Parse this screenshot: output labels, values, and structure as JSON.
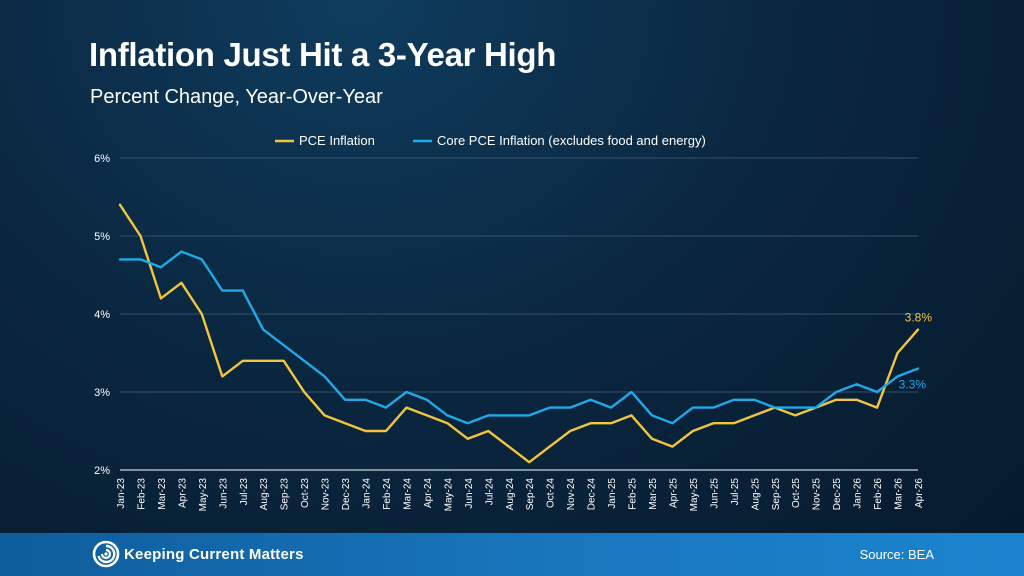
{
  "title": "Inflation Just Hit a 3-Year High",
  "subtitle": "Percent Change, Year-Over-Year",
  "footer": {
    "brand": "Keeping Current Matters",
    "source": "Source: BEA",
    "logo_icon": "kcm-swirl-icon"
  },
  "chart_data": {
    "type": "line",
    "title": "Inflation Just Hit a 3-Year High",
    "subtitle": "Percent Change, Year-Over-Year",
    "x": [
      "Jan-23",
      "Feb-23",
      "Mar-23",
      "Apr-23",
      "May-23",
      "Jun-23",
      "Jul-23",
      "Aug-23",
      "Sep-23",
      "Oct-23",
      "Nov-23",
      "Dec-23",
      "Jan-24",
      "Feb-24",
      "Mar-24",
      "Apr-24",
      "May-24",
      "Jun-24",
      "Jul-24",
      "Aug-24",
      "Sep-24",
      "Oct-24",
      "Nov-24",
      "Dec-24",
      "Jan-25",
      "Feb-25",
      "Mar-25",
      "Apr-25",
      "May-25",
      "Jun-25",
      "Jul-25",
      "Aug-25",
      "Sep-25",
      "Oct-25",
      "Nov-25",
      "Dec-25",
      "Jan-26",
      "Feb-26",
      "Mar-26",
      "Apr-26"
    ],
    "series": [
      {
        "name": "PCE Inflation",
        "color": "#f2c53d",
        "values": [
          5.4,
          5.0,
          4.2,
          4.4,
          4.0,
          3.2,
          3.4,
          3.4,
          3.4,
          3.0,
          2.7,
          2.6,
          2.5,
          2.5,
          2.8,
          2.7,
          2.6,
          2.4,
          2.5,
          2.3,
          2.1,
          2.3,
          2.5,
          2.6,
          2.6,
          2.7,
          2.4,
          2.3,
          2.5,
          2.6,
          2.6,
          2.7,
          2.8,
          2.7,
          2.8,
          2.9,
          2.9,
          2.8,
          3.5,
          3.8
        ],
        "end_label": "3.8%"
      },
      {
        "name": "Core PCE Inflation (excludes food and energy)",
        "color": "#1fa9e8",
        "values": [
          4.7,
          4.7,
          4.6,
          4.8,
          4.7,
          4.3,
          4.3,
          3.8,
          3.6,
          3.4,
          3.2,
          2.9,
          2.9,
          2.8,
          3.0,
          2.9,
          2.7,
          2.6,
          2.7,
          2.7,
          2.7,
          2.8,
          2.8,
          2.9,
          2.8,
          3.0,
          2.7,
          2.6,
          2.8,
          2.8,
          2.9,
          2.9,
          2.8,
          2.8,
          2.8,
          3.0,
          3.1,
          3.0,
          3.2,
          3.3
        ],
        "end_label": "3.3%"
      }
    ],
    "ylim": [
      2,
      6
    ],
    "yticks": [
      "2%",
      "3%",
      "4%",
      "5%",
      "6%"
    ],
    "ytick_values": [
      2,
      3,
      4,
      5,
      6
    ],
    "grid": true,
    "legend_position": "top"
  }
}
